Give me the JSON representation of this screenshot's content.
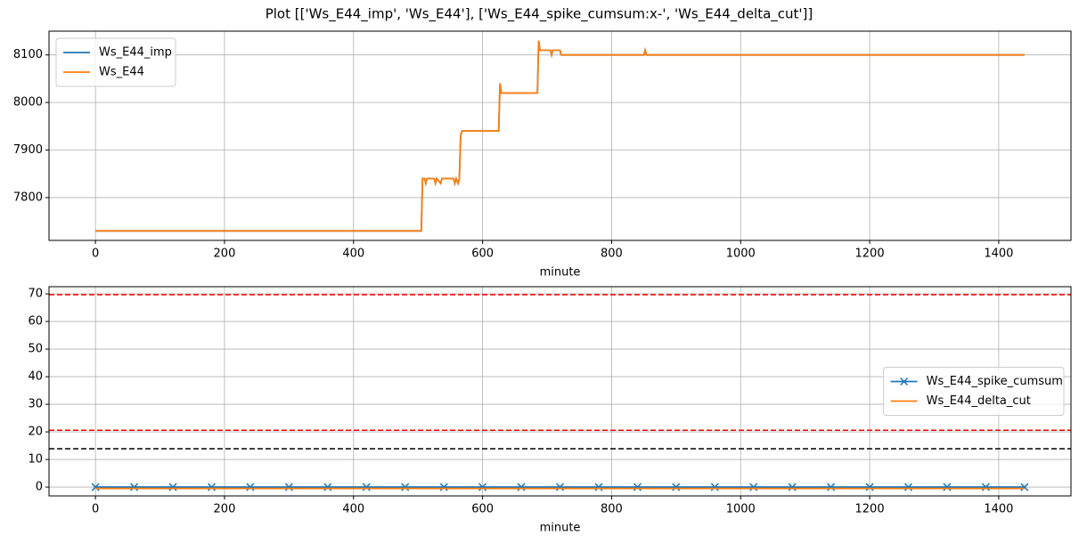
{
  "title": "Plot [['Ws_E44_imp', 'Ws_E44'], ['Ws_E44_spike_cumsum:x-', 'Ws_E44_delta_cut']]",
  "chart_data": [
    {
      "type": "line",
      "x": [
        0,
        505,
        507,
        510,
        512,
        514,
        525,
        527,
        529,
        535,
        537,
        555,
        557,
        559,
        562,
        564,
        566,
        568,
        625,
        627,
        629,
        685,
        687,
        689,
        705,
        707,
        709,
        720,
        722,
        850,
        852,
        854,
        1440
      ],
      "series": [
        {
          "name": "Ws_E44_imp",
          "color": "#1f77b4",
          "values": [
            7730,
            7730,
            7840,
            7840,
            7830,
            7840,
            7840,
            7830,
            7840,
            7830,
            7840,
            7840,
            7830,
            7840,
            7830,
            7840,
            7930,
            7940,
            7940,
            8040,
            8020,
            8020,
            8130,
            8110,
            8110,
            8100,
            8110,
            8110,
            8100,
            8100,
            8110,
            8100,
            8100
          ]
        },
        {
          "name": "Ws_E44",
          "color": "#ff7f0e",
          "values": [
            7730,
            7730,
            7840,
            7840,
            7830,
            7840,
            7840,
            7830,
            7840,
            7830,
            7840,
            7840,
            7830,
            7840,
            7830,
            7840,
            7930,
            7940,
            7940,
            8040,
            8020,
            8020,
            8130,
            8110,
            8110,
            8100,
            8110,
            8110,
            8100,
            8100,
            8110,
            8100,
            8100
          ]
        }
      ],
      "xlabel": "minute",
      "xlim": [
        -72,
        1512
      ],
      "xticks": [
        0,
        200,
        400,
        600,
        800,
        1000,
        1200,
        1400
      ],
      "ylim": [
        7710,
        8150
      ],
      "yticks": [
        7800,
        7900,
        8000,
        8100
      ],
      "grid": true,
      "legend": "upper left"
    },
    {
      "type": "line",
      "x": [
        0,
        60,
        120,
        180,
        240,
        300,
        360,
        420,
        480,
        540,
        600,
        660,
        720,
        780,
        840,
        900,
        960,
        1020,
        1080,
        1140,
        1200,
        1260,
        1320,
        1380,
        1440
      ],
      "series": [
        {
          "name": "Ws_E44_spike_cumsum",
          "color": "#1f77b4",
          "marker": "x",
          "values": [
            0,
            0,
            0,
            0,
            0,
            0,
            0,
            0,
            0,
            0,
            0,
            0,
            0,
            0,
            0,
            0,
            0,
            0,
            0,
            0,
            0,
            0,
            0,
            0,
            0
          ]
        },
        {
          "name": "Ws_E44_delta_cut",
          "color": "#ff7f0e",
          "values": [
            -0.5,
            -0.5,
            -0.5,
            -0.5,
            -0.5,
            -0.5,
            -0.5,
            -0.5,
            -0.5,
            -0.5,
            -0.5,
            -0.5,
            -0.5,
            -0.5,
            -0.5,
            -0.5,
            -0.5,
            -0.5,
            -0.5,
            -0.5,
            -0.5,
            -0.5,
            -0.5,
            -0.5,
            -0.5
          ]
        }
      ],
      "hlines": [
        {
          "value": 69.7,
          "color": "red",
          "style": "dashed"
        },
        {
          "value": 20.6,
          "color": "red",
          "style": "dashed"
        },
        {
          "value": 13.9,
          "color": "black",
          "style": "dashed"
        }
      ],
      "xlabel": "minute",
      "xlim": [
        -72,
        1512
      ],
      "xticks": [
        0,
        200,
        400,
        600,
        800,
        1000,
        1200,
        1400
      ],
      "ylim": [
        -3.2,
        72.6
      ],
      "yticks": [
        0,
        10,
        20,
        30,
        40,
        50,
        60,
        70
      ],
      "grid": true,
      "legend": "center right"
    }
  ]
}
